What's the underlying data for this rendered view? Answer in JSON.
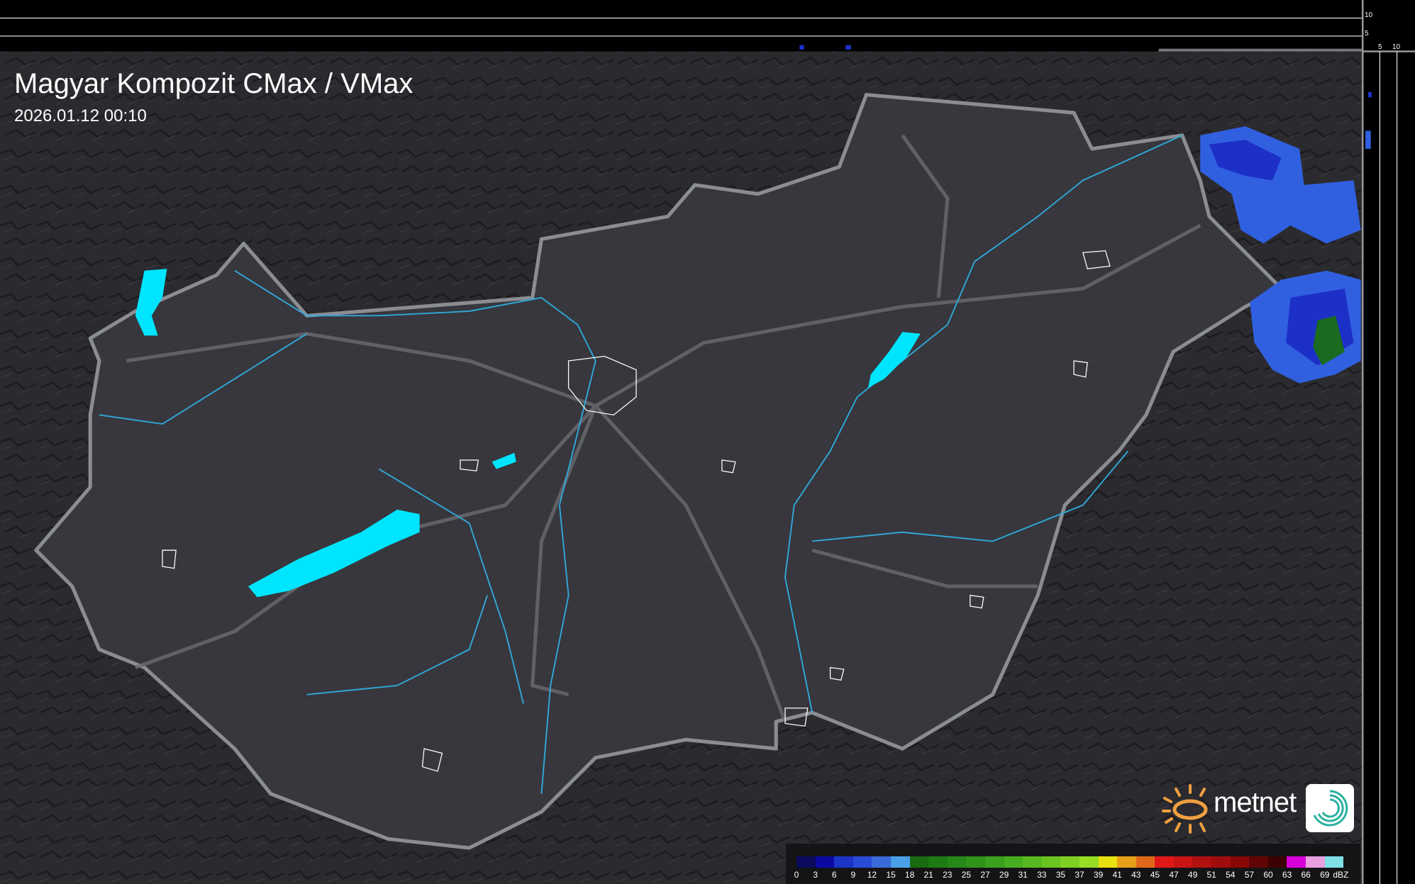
{
  "header": {
    "title": "Magyar Kompozit CMax / VMax",
    "timestamp": "2026.01.12 00:10"
  },
  "side_profile": {
    "top_ticks": [
      "10",
      "5"
    ],
    "right_ticks": [
      "5",
      "10"
    ]
  },
  "legend": {
    "unit": "dBZ",
    "labels": [
      "0",
      "3",
      "6",
      "9",
      "12",
      "15",
      "18",
      "21",
      "23",
      "25",
      "27",
      "29",
      "31",
      "33",
      "35",
      "37",
      "39",
      "41",
      "43",
      "45",
      "47",
      "49",
      "51",
      "54",
      "57",
      "60",
      "63",
      "66",
      "69"
    ],
    "colors": [
      "#0a0a5c",
      "#0a0aa0",
      "#1c34c8",
      "#2a4ad8",
      "#3a6ad8",
      "#4aa0e8",
      "#1a6a10",
      "#1e7a12",
      "#268818",
      "#30921a",
      "#3aa01e",
      "#48ae20",
      "#58ba20",
      "#6ac420",
      "#80d024",
      "#98dc24",
      "#e8e010",
      "#e8a018",
      "#e06818",
      "#e01818",
      "#c81414",
      "#b01010",
      "#a00c0c",
      "#880808",
      "#600404",
      "#3a0202",
      "#d800d8",
      "#e8a0e0",
      "#80e0e8"
    ]
  },
  "logo": {
    "brand": "metnet",
    "sun_color": "#f0a040",
    "icon": "metnet-spiral-icon"
  },
  "colors": {
    "lakes": "#00e5ff",
    "rivers": "#30a8d8",
    "border": "#8a8d92",
    "precip_light": "#3060e0",
    "precip_mid": "#1c30c8",
    "precip_green": "#1a6a20"
  }
}
